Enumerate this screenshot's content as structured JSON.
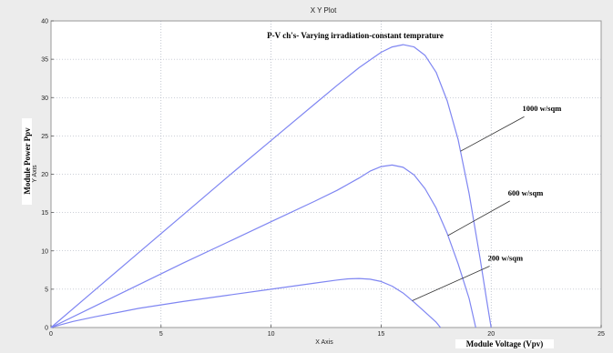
{
  "window_title": "X Y Plot",
  "chart_data": {
    "type": "line",
    "title": "P-V ch's- Varying irradiation-constant temprature",
    "xlabel": "X Axis",
    "ylabel": "Y Axis",
    "x_overlay_label": "Module Voltage (Vpv)",
    "y_overlay_label": "Module Power Ppv",
    "xlim": [
      0,
      25
    ],
    "ylim": [
      0,
      40
    ],
    "x_ticks": [
      0,
      5,
      10,
      15,
      20,
      25
    ],
    "y_ticks": [
      0,
      5,
      10,
      15,
      20,
      25,
      30,
      35,
      40
    ],
    "grid": true,
    "line_color": "#7f86f2",
    "background_color": "#ececec",
    "series": [
      {
        "name": "1000 w/sqm",
        "x": [
          0,
          2,
          4,
          6,
          8,
          10,
          12,
          13,
          14,
          15,
          15.5,
          16,
          16.5,
          17,
          17.5,
          18,
          18.5,
          19,
          19.5,
          19.8,
          20
        ],
        "y": [
          0,
          4.9,
          9.8,
          14.7,
          19.6,
          24.4,
          29.2,
          31.6,
          33.9,
          35.9,
          36.6,
          36.9,
          36.6,
          35.5,
          33.3,
          29.6,
          24.5,
          17.5,
          9.0,
          3.5,
          0
        ]
      },
      {
        "name": "600 w/sqm",
        "x": [
          0,
          2,
          4,
          6,
          8,
          10,
          12,
          13,
          14,
          14.5,
          15,
          15.5,
          16,
          16.5,
          17,
          17.5,
          18,
          18.5,
          19,
          19.3
        ],
        "y": [
          0,
          2.8,
          5.6,
          8.4,
          11.1,
          13.8,
          16.5,
          17.9,
          19.5,
          20.4,
          21.0,
          21.2,
          20.9,
          19.9,
          18.1,
          15.6,
          12.3,
          8.3,
          3.8,
          0
        ]
      },
      {
        "name": "200 w/sqm",
        "x": [
          0,
          0.5,
          1,
          2,
          4,
          6,
          8,
          10,
          12,
          13,
          13.5,
          14,
          14.5,
          15,
          15.5,
          16,
          16.5,
          17,
          17.5,
          17.7
        ],
        "y": [
          0,
          0.4,
          0.8,
          1.4,
          2.5,
          3.4,
          4.2,
          5.0,
          5.8,
          6.2,
          6.35,
          6.4,
          6.3,
          6.0,
          5.4,
          4.5,
          3.3,
          2.0,
          0.7,
          0
        ]
      }
    ],
    "annotations": [
      {
        "text": "1000 w/sqm",
        "series": 0,
        "at_y": 23
      },
      {
        "text": "600 w/sqm",
        "series": 1,
        "at_y": 12
      },
      {
        "text": "200 w/sqm",
        "series": 2,
        "at_y": 3.5
      }
    ]
  }
}
